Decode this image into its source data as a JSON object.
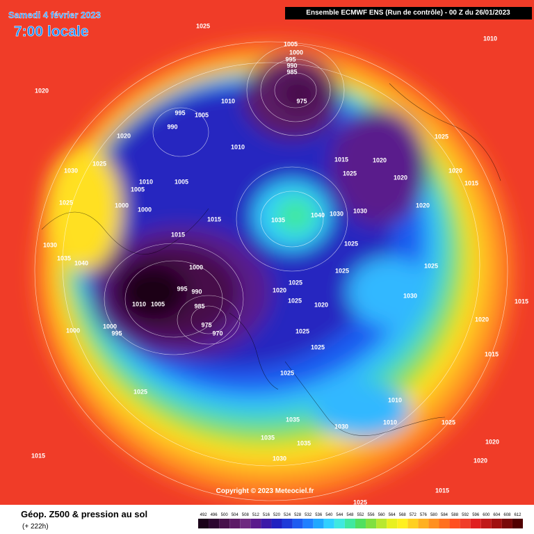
{
  "header": {
    "date": "Samedi 4 février 2023",
    "time": "7:00 locale",
    "run": "Ensemble ECMWF ENS  (Run de contrôle)  -  00 Z du 26/01/2023"
  },
  "map_labels": [
    1025,
    1010,
    1020,
    1005,
    1000,
    995,
    990,
    985,
    975,
    1010,
    995,
    1005,
    990,
    1020,
    1010,
    1025,
    1030,
    1015,
    1020,
    1025,
    1025,
    1020,
    1020,
    1015,
    1010,
    1005,
    1005,
    1025,
    1000,
    1000,
    1035,
    1040,
    1030,
    1030,
    1020,
    1015,
    1015,
    1025,
    1030,
    1035,
    1040,
    1000,
    1025,
    1020,
    1025,
    1025,
    1020,
    995,
    990,
    1010,
    1005,
    985,
    1000,
    995,
    1000,
    975,
    970,
    1025,
    1025,
    1025,
    1025,
    1035,
    1035,
    1035,
    1030,
    1030,
    1010,
    1010,
    1030,
    1025,
    1020,
    1020,
    1015,
    1015,
    1025,
    1015,
    1015,
    1020,
    1025
  ],
  "footer": {
    "title": "Géop. Z500 & pression au sol",
    "forecast": "(+ 222h)",
    "copyright": "Copyright © 2023 Meteociel.fr"
  },
  "colorbar": {
    "labels": [
      492,
      496,
      500,
      504,
      508,
      512,
      516,
      520,
      524,
      528,
      532,
      536,
      540,
      544,
      548,
      552,
      556,
      560,
      564,
      568,
      572,
      576,
      580,
      584,
      588,
      592,
      596,
      600,
      604,
      608,
      612
    ],
    "colors": [
      "#1a0019",
      "#2c0530",
      "#46104a",
      "#5c1a66",
      "#6e2a80",
      "#5a1a8c",
      "#3c1aa8",
      "#2020c0",
      "#1e3ad8",
      "#1e5cf0",
      "#2080ff",
      "#20a8ff",
      "#30d0ff",
      "#40e8e0",
      "#40e8a0",
      "#50e060",
      "#80e040",
      "#b8e830",
      "#e8f020",
      "#fff020",
      "#ffd020",
      "#ffb020",
      "#ff9020",
      "#ff7020",
      "#ff5020",
      "#f03c28",
      "#e02020",
      "#c01818",
      "#a01010",
      "#780808",
      "#500000"
    ]
  }
}
